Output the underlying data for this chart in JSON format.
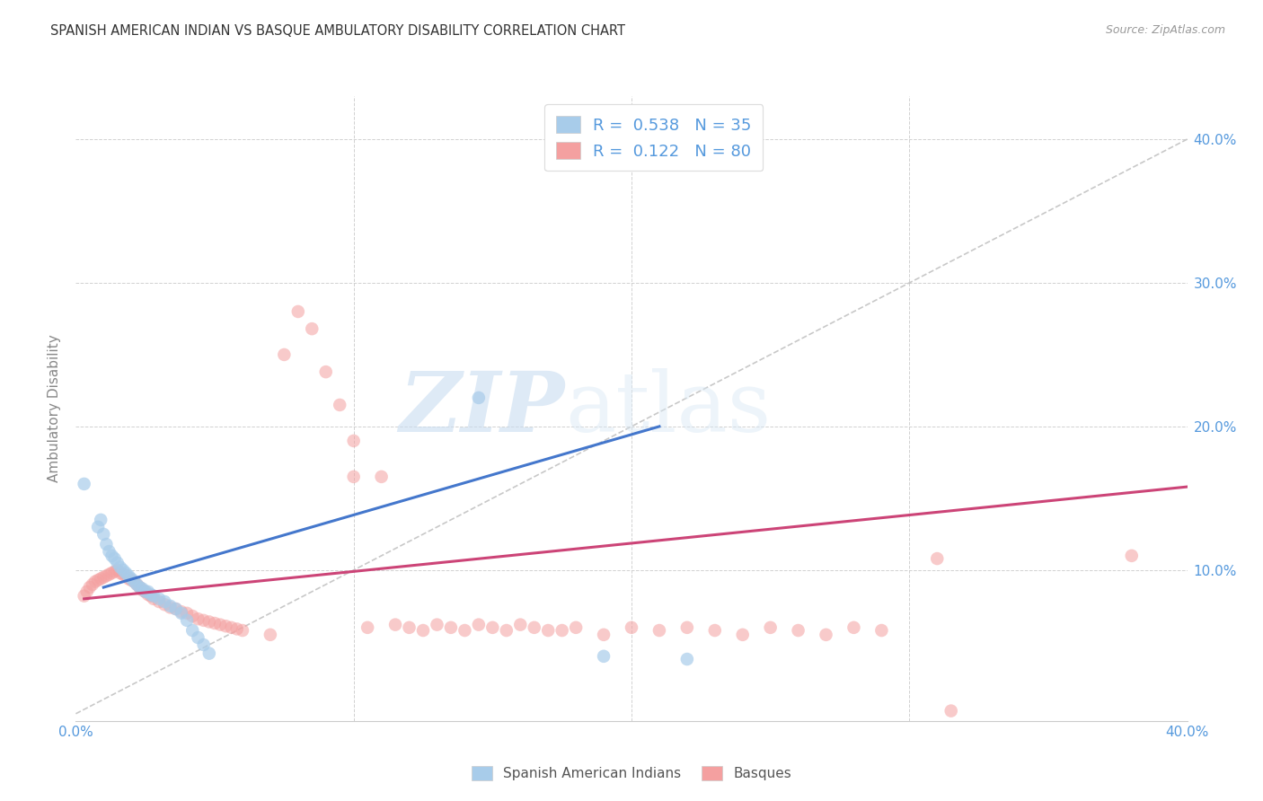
{
  "title": "SPANISH AMERICAN INDIAN VS BASQUE AMBULATORY DISABILITY CORRELATION CHART",
  "source": "Source: ZipAtlas.com",
  "ylabel": "Ambulatory Disability",
  "legend_r1": "R =  0.538",
  "legend_n1": "N = 35",
  "legend_r2": "R =  0.122",
  "legend_n2": "N = 80",
  "color_blue": "#A8CCEA",
  "color_pink": "#F4A0A0",
  "color_blue_line": "#4477CC",
  "color_pink_line": "#CC4477",
  "color_diag": "#BBBBBB",
  "color_grid": "#CCCCCC",
  "color_title": "#333333",
  "color_axis_blue": "#5599DD",
  "watermark_zip": "ZIP",
  "watermark_atlas": "atlas",
  "blue_points": [
    [
      0.003,
      0.16
    ],
    [
      0.008,
      0.13
    ],
    [
      0.009,
      0.135
    ],
    [
      0.01,
      0.125
    ],
    [
      0.011,
      0.118
    ],
    [
      0.012,
      0.113
    ],
    [
      0.013,
      0.11
    ],
    [
      0.014,
      0.108
    ],
    [
      0.015,
      0.105
    ],
    [
      0.016,
      0.102
    ],
    [
      0.017,
      0.1
    ],
    [
      0.018,
      0.098
    ],
    [
      0.019,
      0.096
    ],
    [
      0.02,
      0.094
    ],
    [
      0.021,
      0.092
    ],
    [
      0.022,
      0.09
    ],
    [
      0.023,
      0.088
    ],
    [
      0.024,
      0.087
    ],
    [
      0.025,
      0.085
    ],
    [
      0.026,
      0.085
    ],
    [
      0.027,
      0.083
    ],
    [
      0.028,
      0.082
    ],
    [
      0.03,
      0.08
    ],
    [
      0.032,
      0.078
    ],
    [
      0.034,
      0.075
    ],
    [
      0.036,
      0.073
    ],
    [
      0.038,
      0.07
    ],
    [
      0.04,
      0.065
    ],
    [
      0.042,
      0.058
    ],
    [
      0.044,
      0.053
    ],
    [
      0.046,
      0.048
    ],
    [
      0.048,
      0.042
    ],
    [
      0.145,
      0.22
    ],
    [
      0.19,
      0.04
    ],
    [
      0.22,
      0.038
    ]
  ],
  "pink_points": [
    [
      0.003,
      0.082
    ],
    [
      0.004,
      0.085
    ],
    [
      0.005,
      0.088
    ],
    [
      0.006,
      0.09
    ],
    [
      0.007,
      0.092
    ],
    [
      0.008,
      0.093
    ],
    [
      0.009,
      0.094
    ],
    [
      0.01,
      0.095
    ],
    [
      0.011,
      0.096
    ],
    [
      0.012,
      0.097
    ],
    [
      0.013,
      0.098
    ],
    [
      0.014,
      0.099
    ],
    [
      0.015,
      0.1
    ],
    [
      0.016,
      0.098
    ],
    [
      0.017,
      0.097
    ],
    [
      0.018,
      0.096
    ],
    [
      0.019,
      0.094
    ],
    [
      0.02,
      0.093
    ],
    [
      0.021,
      0.092
    ],
    [
      0.022,
      0.09
    ],
    [
      0.023,
      0.088
    ],
    [
      0.024,
      0.086
    ],
    [
      0.025,
      0.085
    ],
    [
      0.026,
      0.083
    ],
    [
      0.027,
      0.082
    ],
    [
      0.028,
      0.08
    ],
    [
      0.03,
      0.078
    ],
    [
      0.032,
      0.076
    ],
    [
      0.034,
      0.074
    ],
    [
      0.036,
      0.073
    ],
    [
      0.038,
      0.071
    ],
    [
      0.04,
      0.07
    ],
    [
      0.042,
      0.068
    ],
    [
      0.044,
      0.066
    ],
    [
      0.046,
      0.065
    ],
    [
      0.048,
      0.064
    ],
    [
      0.05,
      0.063
    ],
    [
      0.052,
      0.062
    ],
    [
      0.054,
      0.061
    ],
    [
      0.056,
      0.06
    ],
    [
      0.058,
      0.059
    ],
    [
      0.06,
      0.058
    ],
    [
      0.07,
      0.055
    ],
    [
      0.075,
      0.25
    ],
    [
      0.08,
      0.28
    ],
    [
      0.085,
      0.268
    ],
    [
      0.09,
      0.238
    ],
    [
      0.095,
      0.215
    ],
    [
      0.1,
      0.19
    ],
    [
      0.11,
      0.165
    ],
    [
      0.12,
      0.06
    ],
    [
      0.13,
      0.062
    ],
    [
      0.14,
      0.058
    ],
    [
      0.15,
      0.06
    ],
    [
      0.16,
      0.062
    ],
    [
      0.17,
      0.058
    ],
    [
      0.18,
      0.06
    ],
    [
      0.19,
      0.055
    ],
    [
      0.2,
      0.06
    ],
    [
      0.21,
      0.058
    ],
    [
      0.22,
      0.06
    ],
    [
      0.23,
      0.058
    ],
    [
      0.24,
      0.055
    ],
    [
      0.25,
      0.06
    ],
    [
      0.26,
      0.058
    ],
    [
      0.27,
      0.055
    ],
    [
      0.28,
      0.06
    ],
    [
      0.29,
      0.058
    ],
    [
      0.31,
      0.108
    ],
    [
      0.315,
      0.002
    ],
    [
      0.38,
      0.11
    ],
    [
      0.1,
      0.165
    ],
    [
      0.105,
      0.06
    ],
    [
      0.115,
      0.062
    ],
    [
      0.125,
      0.058
    ],
    [
      0.135,
      0.06
    ],
    [
      0.145,
      0.062
    ],
    [
      0.155,
      0.058
    ],
    [
      0.165,
      0.06
    ],
    [
      0.175,
      0.058
    ]
  ],
  "blue_line_x": [
    0.01,
    0.21
  ],
  "blue_line_y": [
    0.088,
    0.2
  ],
  "pink_line_x": [
    0.003,
    0.4
  ],
  "pink_line_y": [
    0.08,
    0.158
  ],
  "diag_line_x": [
    0.0,
    0.4
  ],
  "diag_line_y": [
    0.0,
    0.4
  ],
  "xlim": [
    0.0,
    0.4
  ],
  "ylim": [
    -0.005,
    0.43
  ]
}
